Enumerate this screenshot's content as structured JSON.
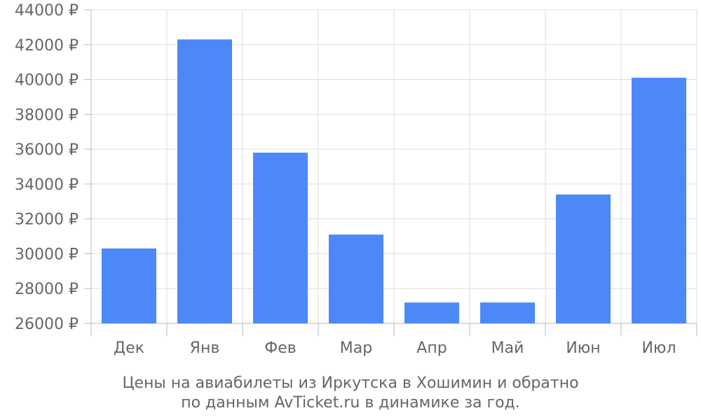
{
  "chart_data": {
    "type": "bar",
    "categories": [
      "Дек",
      "Янв",
      "Фев",
      "Мар",
      "Апр",
      "Май",
      "Июн",
      "Июл"
    ],
    "values": [
      30300,
      42300,
      35800,
      31100,
      27200,
      27200,
      33400,
      40100
    ],
    "ylim": [
      26000,
      44000
    ],
    "y_ticks": [
      26000,
      28000,
      30000,
      32000,
      34000,
      36000,
      38000,
      40000,
      42000,
      44000
    ],
    "y_tick_labels": [
      "26000 ₽",
      "28000 ₽",
      "30000 ₽",
      "32000 ₽",
      "34000 ₽",
      "36000 ₽",
      "38000 ₽",
      "40000 ₽",
      "42000 ₽",
      "44000 ₽"
    ],
    "grid": true,
    "bar_color": "#4d88f9",
    "title": ""
  },
  "caption": {
    "line1": "Цены на авиабилеты из Иркутска в Хошимин и обратно",
    "line2": "по данным AvTicket.ru в динамике за год."
  }
}
